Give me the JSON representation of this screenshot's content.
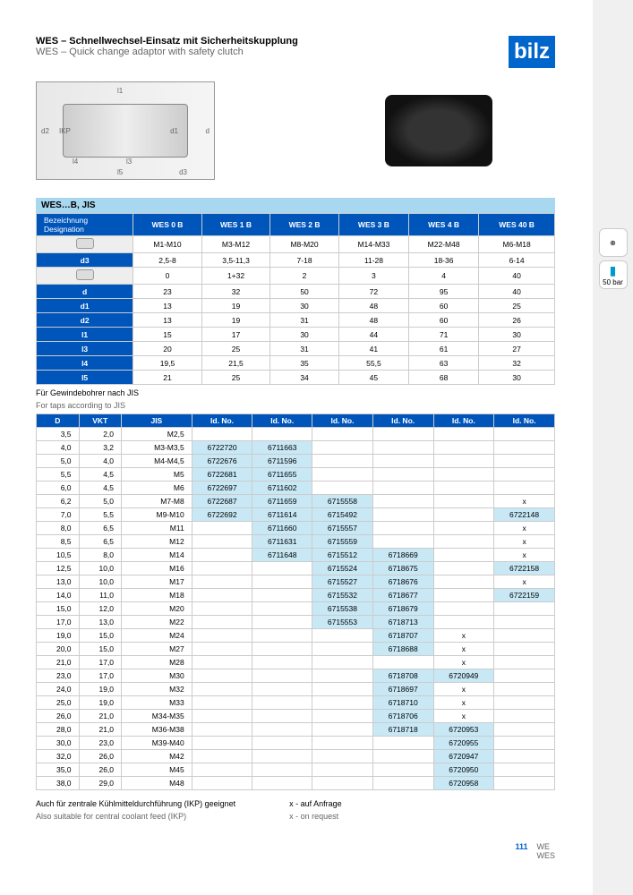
{
  "title_de": "WES – Schnellwechsel-Einsatz mit Sicherheitskupplung",
  "title_en": "WES – Quick change adaptor with safety clutch",
  "logo": "bilz",
  "section": "WES…B, JIS",
  "designation_de": "Bezeichnung",
  "designation_en": "Designation",
  "models": [
    "WES 0 B",
    "WES 1 B",
    "WES 2 B",
    "WES 3 B",
    "WES 4 B",
    "WES 40 B"
  ],
  "spec_rows": [
    {
      "label": "",
      "icon": true,
      "vals": [
        "M1-M10",
        "M3-M12",
        "M8-M20",
        "M14-M33",
        "M22-M48",
        "M6-M18"
      ]
    },
    {
      "label": "d3",
      "vals": [
        "2,5-8",
        "3,5-11,3",
        "7-18",
        "11-28",
        "18-36",
        "6-14"
      ]
    },
    {
      "label": "",
      "icon": true,
      "vals": [
        "0",
        "1+32",
        "2",
        "3",
        "4",
        "40"
      ]
    },
    {
      "label": "d",
      "vals": [
        "23",
        "32",
        "50",
        "72",
        "95",
        "40"
      ]
    },
    {
      "label": "d1",
      "vals": [
        "13",
        "19",
        "30",
        "48",
        "60",
        "25"
      ]
    },
    {
      "label": "d2",
      "vals": [
        "13",
        "19",
        "31",
        "48",
        "60",
        "26"
      ]
    },
    {
      "label": "l1",
      "vals": [
        "15",
        "17",
        "30",
        "44",
        "71",
        "30"
      ]
    },
    {
      "label": "l3",
      "vals": [
        "20",
        "25",
        "31",
        "41",
        "61",
        "27"
      ]
    },
    {
      "label": "l4",
      "vals": [
        "19,5",
        "21,5",
        "35",
        "55,5",
        "63",
        "32"
      ]
    },
    {
      "label": "l5",
      "vals": [
        "21",
        "25",
        "34",
        "45",
        "68",
        "30"
      ]
    }
  ],
  "jis_note_de": "Für Gewindebohrer nach JIS",
  "jis_note_en": "For taps according to JIS",
  "jis_headers": [
    "D",
    "VKT",
    "JIS",
    "Id. No.",
    "Id. No.",
    "Id. No.",
    "Id. No.",
    "Id. No.",
    "Id. No."
  ],
  "jis_rows": [
    [
      "3,5",
      "2,0",
      "M2,5",
      "",
      "",
      "",
      "",
      "",
      ""
    ],
    [
      "4,0",
      "3,2",
      "M3-M3,5",
      "6722720",
      "6711663",
      "",
      "",
      "",
      ""
    ],
    [
      "5,0",
      "4,0",
      "M4-M4,5",
      "6722676",
      "6711596",
      "",
      "",
      "",
      ""
    ],
    [
      "5,5",
      "4,5",
      "M5",
      "6722681",
      "6711655",
      "",
      "",
      "",
      ""
    ],
    [
      "6,0",
      "4,5",
      "M6",
      "6722697",
      "6711602",
      "",
      "",
      "",
      ""
    ],
    [
      "6,2",
      "5,0",
      "M7-M8",
      "6722687",
      "6711659",
      "6715558",
      "",
      "",
      "x"
    ],
    [
      "7,0",
      "5,5",
      "M9-M10",
      "6722692",
      "6711614",
      "6715492",
      "",
      "",
      "6722148"
    ],
    [
      "8,0",
      "6,5",
      "M11",
      "",
      "6711660",
      "6715557",
      "",
      "",
      "x"
    ],
    [
      "8,5",
      "6,5",
      "M12",
      "",
      "6711631",
      "6715559",
      "",
      "",
      "x"
    ],
    [
      "10,5",
      "8,0",
      "M14",
      "",
      "6711648",
      "6715512",
      "6718669",
      "",
      "x"
    ],
    [
      "12,5",
      "10,0",
      "M16",
      "",
      "",
      "6715524",
      "6718675",
      "",
      "6722158"
    ],
    [
      "13,0",
      "10,0",
      "M17",
      "",
      "",
      "6715527",
      "6718676",
      "",
      "x"
    ],
    [
      "14,0",
      "11,0",
      "M18",
      "",
      "",
      "6715532",
      "6718677",
      "",
      "6722159"
    ],
    [
      "15,0",
      "12,0",
      "M20",
      "",
      "",
      "6715538",
      "6718679",
      "",
      ""
    ],
    [
      "17,0",
      "13,0",
      "M22",
      "",
      "",
      "6715553",
      "6718713",
      "",
      ""
    ],
    [
      "19,0",
      "15,0",
      "M24",
      "",
      "",
      "",
      "6718707",
      "x",
      ""
    ],
    [
      "20,0",
      "15,0",
      "M27",
      "",
      "",
      "",
      "6718688",
      "x",
      ""
    ],
    [
      "21,0",
      "17,0",
      "M28",
      "",
      "",
      "",
      "",
      "x",
      ""
    ],
    [
      "23,0",
      "17,0",
      "M30",
      "",
      "",
      "",
      "6718708",
      "6720949",
      ""
    ],
    [
      "24,0",
      "19,0",
      "M32",
      "",
      "",
      "",
      "6718697",
      "x",
      ""
    ],
    [
      "25,0",
      "19,0",
      "M33",
      "",
      "",
      "",
      "6718710",
      "x",
      ""
    ],
    [
      "26,0",
      "21,0",
      "M34-M35",
      "",
      "",
      "",
      "6718706",
      "x",
      ""
    ],
    [
      "28,0",
      "21,0",
      "M36-M38",
      "",
      "",
      "",
      "6718718",
      "6720953",
      ""
    ],
    [
      "30,0",
      "23,0",
      "M39-M40",
      "",
      "",
      "",
      "",
      "6720955",
      ""
    ],
    [
      "32,0",
      "26,0",
      "M42",
      "",
      "",
      "",
      "",
      "6720947",
      ""
    ],
    [
      "35,0",
      "26,0",
      "M45",
      "",
      "",
      "",
      "",
      "6720950",
      ""
    ],
    [
      "38,0",
      "29,0",
      "M48",
      "",
      "",
      "",
      "",
      "6720958",
      ""
    ]
  ],
  "jis_hl": {
    "1": [
      3,
      4
    ],
    "2": [
      3,
      4
    ],
    "3": [
      3,
      4
    ],
    "4": [
      3,
      4
    ],
    "5": [
      3,
      4,
      5
    ],
    "6": [
      3,
      4,
      5,
      8
    ],
    "7": [
      4,
      5
    ],
    "8": [
      4,
      5
    ],
    "9": [
      4,
      5,
      6
    ],
    "10": [
      5,
      6,
      8
    ],
    "11": [
      5,
      6
    ],
    "12": [
      5,
      6,
      8
    ],
    "13": [
      5,
      6
    ],
    "14": [
      5,
      6
    ],
    "15": [
      6
    ],
    "16": [
      6
    ],
    "18": [
      6,
      7
    ],
    "19": [
      6
    ],
    "20": [
      6
    ],
    "21": [
      6
    ],
    "22": [
      6,
      7
    ],
    "23": [
      7
    ],
    "24": [
      7
    ],
    "25": [
      7
    ],
    "26": [
      7
    ]
  },
  "footnote_de": "Auch für zentrale Kühlmitteldurchführung (IKP) geeignet",
  "footnote_en": "Also suitable for central coolant feed (IKP)",
  "legend_de": "x - auf Anfrage",
  "legend_en": "x - on request",
  "page_num": "111",
  "footer_label1": "WE",
  "footer_label2": "WES",
  "sidebar_label": "50 bar"
}
